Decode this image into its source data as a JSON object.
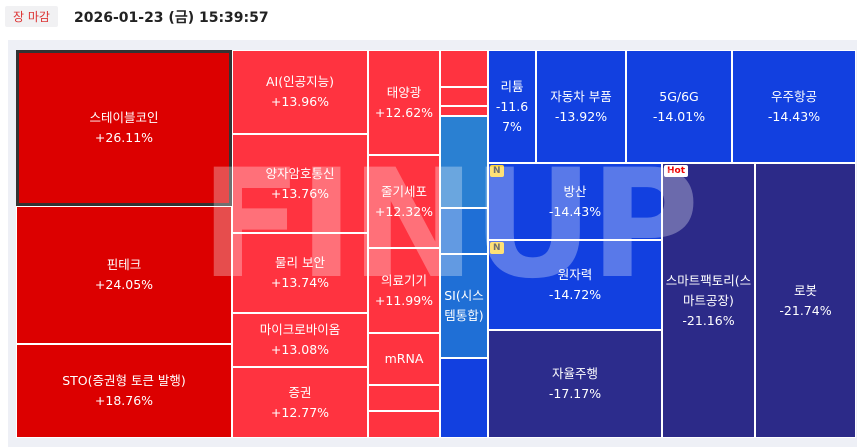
{
  "header": {
    "status": "장 마감",
    "timestamp": "2026-01-23 (금) 15:39:57"
  },
  "watermark": "FINUP",
  "chart_data": {
    "type": "treemap",
    "categories": [
      "스테이블코인",
      "핀테크",
      "STO(증권형 토큰 발행)",
      "AI(인공지능)",
      "양자암호통신",
      "물리 보안",
      "마이크로바이옴",
      "증권",
      "태양광",
      "줄기세포",
      "의료기기",
      "mRNA",
      "SI(시스템통합)",
      "리튬",
      "자동차 부품",
      "5G/6G",
      "우주항공",
      "방산",
      "원자력",
      "자율주행",
      "스마트팩토리(스마트공장)",
      "로봇"
    ],
    "values": [
      26.11,
      24.05,
      18.76,
      13.96,
      13.76,
      13.74,
      13.08,
      12.77,
      12.62,
      12.32,
      11.99,
      null,
      null,
      -11.67,
      -13.92,
      -14.01,
      -14.43,
      -14.43,
      -14.72,
      -17.17,
      -21.16,
      -21.74
    ],
    "value_labels": [
      "+26.11%",
      "+24.05%",
      "+18.76%",
      "+13.96%",
      "+13.76%",
      "+13.74%",
      "+13.08%",
      "+12.77%",
      "+12.62%",
      "+12.32%",
      "+11.99%",
      null,
      null,
      "-11.67%",
      "-13.92%",
      "-14.01%",
      "-14.43%",
      "-14.43%",
      "-14.72%",
      "-17.17%",
      "-21.16%",
      "-21.74%"
    ],
    "colors": [
      "#dc0000",
      "#dc0000",
      "#dc0000",
      "#ff3340",
      "#ff3340",
      "#ff3340",
      "#ff3340",
      "#ff3340",
      "#ff3340",
      "#ff3340",
      "#ff3340",
      "#ff3340",
      "#1f6fd6",
      "#1240e0",
      "#1240e0",
      "#1240e0",
      "#1240e0",
      "#1240e0",
      "#1240e0",
      "#2c2c8c",
      "#2c2a88",
      "#2c2a88"
    ],
    "badges": [
      null,
      null,
      null,
      null,
      null,
      null,
      null,
      null,
      null,
      null,
      null,
      null,
      null,
      null,
      null,
      null,
      null,
      "N",
      "N",
      null,
      "Hot",
      null
    ]
  }
}
